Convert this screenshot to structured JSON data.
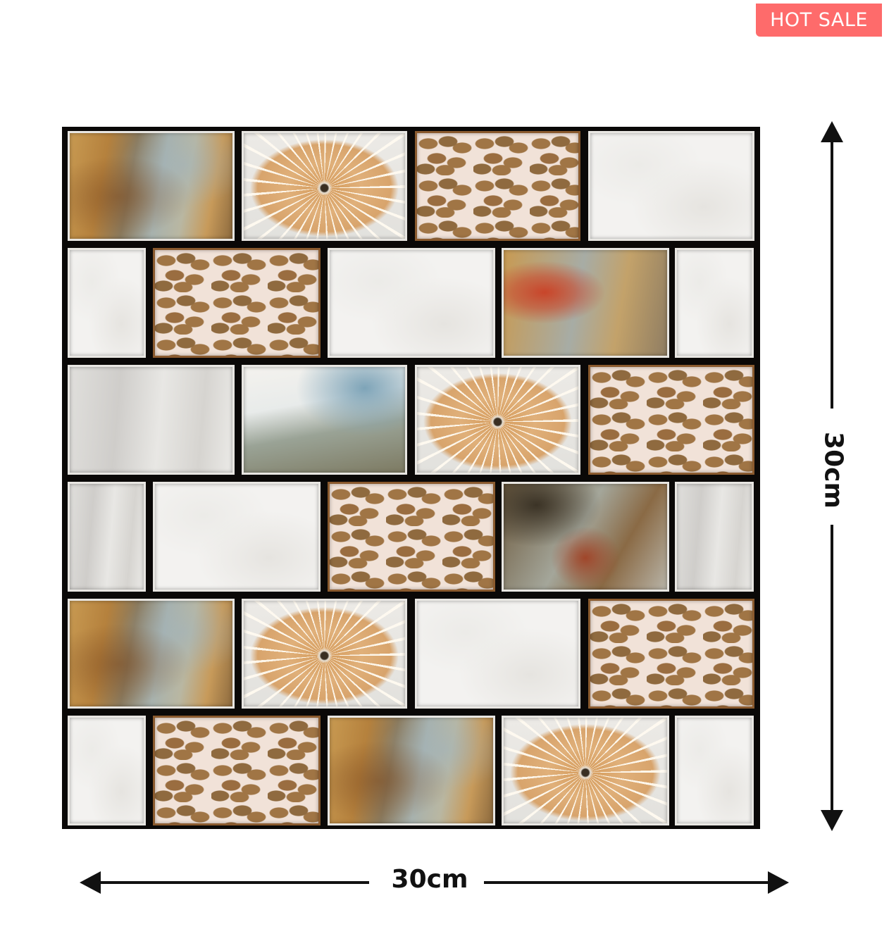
{
  "badge": {
    "label": "HOT SALE",
    "color": "#fe6b6b"
  },
  "dimensions": {
    "width_label": "30cm",
    "height_label": "30cm"
  },
  "tile_rows": [
    [
      "paint",
      "sun",
      "leaf",
      "white"
    ],
    [
      "white",
      "leaf",
      "white",
      "paintred",
      "white"
    ],
    [
      "grey",
      "blue",
      "sun",
      "leaf"
    ],
    [
      "grey",
      "white",
      "leaf",
      "paintdark",
      "grey"
    ],
    [
      "paint",
      "sun",
      "white",
      "leaf"
    ],
    [
      "white",
      "leaf",
      "paint",
      "sun",
      "white"
    ]
  ]
}
